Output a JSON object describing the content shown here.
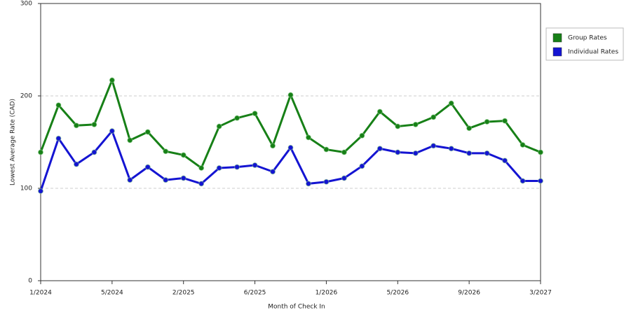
{
  "chart_data": {
    "type": "line",
    "x_label": "Month of Check In",
    "y_label": "Lowest Average Rate (CAD)",
    "categories": [
      "1/2024",
      null,
      null,
      null,
      "5/2024",
      null,
      null,
      null,
      "2/2025",
      null,
      null,
      null,
      "6/2025",
      null,
      null,
      null,
      "1/2026",
      null,
      null,
      null,
      "5/2026",
      null,
      null,
      null,
      "9/2026",
      null,
      null,
      null,
      "3/2027"
    ],
    "series": [
      {
        "name": "Group Rates",
        "color": "#178017",
        "values": [
          139,
          190,
          168,
          169,
          217,
          152,
          161,
          140,
          136,
          122,
          167,
          176,
          181,
          146,
          201,
          155,
          142,
          139,
          157,
          183,
          167,
          169,
          177,
          192,
          165,
          172,
          173,
          147,
          139
        ]
      },
      {
        "name": "Individual Rates",
        "color": "#1414d2",
        "values": [
          97,
          154,
          126,
          139,
          162,
          109,
          123,
          109,
          111,
          105,
          122,
          123,
          125,
          118,
          144,
          105,
          107,
          111,
          124,
          143,
          139,
          138,
          146,
          143,
          138,
          138,
          130,
          108,
          108
        ]
      }
    ],
    "ylim": [
      0,
      300
    ],
    "yticks": [
      0,
      100,
      200,
      300
    ],
    "grid": true,
    "legend": "right"
  }
}
